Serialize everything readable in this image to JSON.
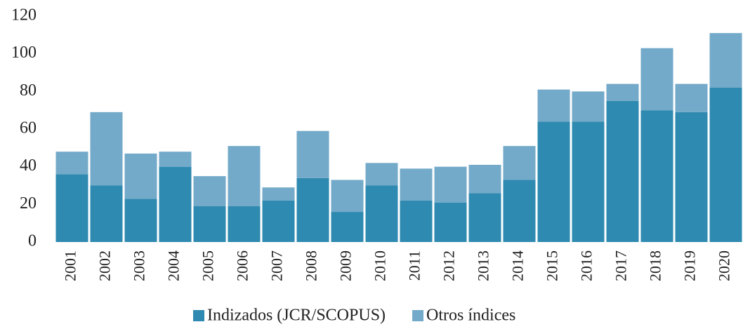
{
  "chart_data": {
    "type": "stacked_bar",
    "categories": [
      "2001",
      "2002",
      "2003",
      "2004",
      "2005",
      "2006",
      "2007",
      "2008",
      "2009",
      "2010",
      "2011",
      "2012",
      "2013",
      "2014",
      "2015",
      "2016",
      "2017",
      "2018",
      "2019",
      "2020"
    ],
    "series": [
      {
        "name": "Indizados (JCR/SCOPUS)",
        "color": "#2e8ab0",
        "values": [
          36,
          30,
          23,
          40,
          19,
          19,
          22,
          34,
          16,
          30,
          22,
          21,
          26,
          33,
          64,
          64,
          75,
          70,
          69,
          82
        ]
      },
      {
        "name": "Otros índices",
        "color": "#74aac9",
        "values": [
          12,
          39,
          24,
          8,
          16,
          32,
          7,
          25,
          17,
          12,
          17,
          19,
          15,
          18,
          17,
          16,
          9,
          33,
          15,
          29
        ]
      }
    ],
    "ylim": [
      0,
      120
    ],
    "yticks": [
      0,
      20,
      40,
      60,
      80,
      100,
      120
    ],
    "grid": false,
    "legend": "bottom"
  }
}
